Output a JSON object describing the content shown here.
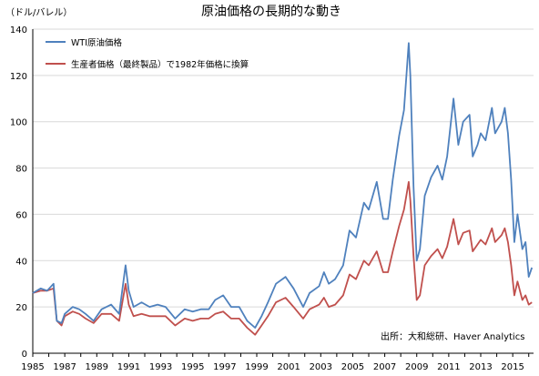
{
  "chart_data": {
    "type": "line",
    "title": "原油価格の長期的な動き",
    "ylabel": "（ドル/バレル）",
    "source": "出所：大和総研、Haver Analytics",
    "ylim": [
      0,
      140
    ],
    "yticks": [
      0,
      20,
      40,
      60,
      80,
      100,
      120,
      140
    ],
    "xlim": [
      1985,
      2016.3
    ],
    "xticks": [
      1985,
      1987,
      1989,
      1991,
      1993,
      1995,
      1997,
      1999,
      2001,
      2003,
      2005,
      2007,
      2009,
      2011,
      2013,
      2015
    ],
    "xtick_labels": [
      "1985",
      "1987",
      "1989",
      "1991",
      "1993",
      "1995",
      "1997",
      "1999",
      "2001",
      "2003",
      "2005",
      "2007",
      "2009",
      "2011",
      "2013",
      "2015"
    ],
    "grid": "horizontal",
    "legend": "top-left",
    "series": [
      {
        "name": "WTI原油価格",
        "color": "#4f81bd",
        "points": [
          [
            1985.0,
            26
          ],
          [
            1985.5,
            28
          ],
          [
            1985.9,
            27
          ],
          [
            1986.3,
            30
          ],
          [
            1986.5,
            14
          ],
          [
            1986.8,
            13
          ],
          [
            1987.0,
            17
          ],
          [
            1987.5,
            20
          ],
          [
            1987.9,
            19
          ],
          [
            1988.3,
            17
          ],
          [
            1988.8,
            14
          ],
          [
            1989.3,
            19
          ],
          [
            1989.9,
            21
          ],
          [
            1990.4,
            17
          ],
          [
            1990.8,
            38
          ],
          [
            1991.0,
            27
          ],
          [
            1991.3,
            20
          ],
          [
            1991.8,
            22
          ],
          [
            1992.3,
            20
          ],
          [
            1992.8,
            21
          ],
          [
            1993.3,
            20
          ],
          [
            1993.9,
            15
          ],
          [
            1994.5,
            19
          ],
          [
            1995.0,
            18
          ],
          [
            1995.5,
            19
          ],
          [
            1996.0,
            19
          ],
          [
            1996.4,
            23
          ],
          [
            1996.9,
            25
          ],
          [
            1997.4,
            20
          ],
          [
            1997.9,
            20
          ],
          [
            1998.4,
            14
          ],
          [
            1998.9,
            11
          ],
          [
            1999.3,
            16
          ],
          [
            1999.7,
            22
          ],
          [
            2000.2,
            30
          ],
          [
            2000.8,
            33
          ],
          [
            2001.3,
            28
          ],
          [
            2001.9,
            20
          ],
          [
            2002.3,
            26
          ],
          [
            2002.9,
            29
          ],
          [
            2003.2,
            35
          ],
          [
            2003.5,
            30
          ],
          [
            2003.9,
            32
          ],
          [
            2004.4,
            38
          ],
          [
            2004.8,
            53
          ],
          [
            2005.2,
            50
          ],
          [
            2005.7,
            65
          ],
          [
            2006.0,
            62
          ],
          [
            2006.5,
            74
          ],
          [
            2006.9,
            58
          ],
          [
            2007.2,
            58
          ],
          [
            2007.5,
            75
          ],
          [
            2007.9,
            94
          ],
          [
            2008.2,
            105
          ],
          [
            2008.5,
            134
          ],
          [
            2008.6,
            120
          ],
          [
            2008.8,
            72
          ],
          [
            2009.0,
            40
          ],
          [
            2009.2,
            45
          ],
          [
            2009.5,
            68
          ],
          [
            2009.9,
            76
          ],
          [
            2010.3,
            81
          ],
          [
            2010.6,
            75
          ],
          [
            2010.9,
            85
          ],
          [
            2011.3,
            110
          ],
          [
            2011.6,
            90
          ],
          [
            2011.9,
            100
          ],
          [
            2012.3,
            103
          ],
          [
            2012.5,
            85
          ],
          [
            2012.8,
            90
          ],
          [
            2013.0,
            95
          ],
          [
            2013.3,
            92
          ],
          [
            2013.7,
            106
          ],
          [
            2013.9,
            95
          ],
          [
            2014.3,
            100
          ],
          [
            2014.5,
            106
          ],
          [
            2014.7,
            95
          ],
          [
            2014.9,
            75
          ],
          [
            2015.1,
            48
          ],
          [
            2015.3,
            60
          ],
          [
            2015.6,
            45
          ],
          [
            2015.8,
            48
          ],
          [
            2016.0,
            33
          ],
          [
            2016.2,
            37
          ]
        ]
      },
      {
        "name": "生産者価格（最終製品）で1982年価格に換算",
        "color": "#c0504d",
        "points": [
          [
            1985.0,
            26
          ],
          [
            1985.5,
            27
          ],
          [
            1985.9,
            27
          ],
          [
            1986.3,
            28
          ],
          [
            1986.5,
            14
          ],
          [
            1986.8,
            12
          ],
          [
            1987.0,
            16
          ],
          [
            1987.5,
            18
          ],
          [
            1987.9,
            17
          ],
          [
            1988.3,
            15
          ],
          [
            1988.8,
            13
          ],
          [
            1989.3,
            17
          ],
          [
            1989.9,
            17
          ],
          [
            1990.4,
            14
          ],
          [
            1990.8,
            30
          ],
          [
            1991.0,
            21
          ],
          [
            1991.3,
            16
          ],
          [
            1991.8,
            17
          ],
          [
            1992.3,
            16
          ],
          [
            1992.8,
            16
          ],
          [
            1993.3,
            16
          ],
          [
            1993.9,
            12
          ],
          [
            1994.5,
            15
          ],
          [
            1995.0,
            14
          ],
          [
            1995.5,
            15
          ],
          [
            1996.0,
            15
          ],
          [
            1996.4,
            17
          ],
          [
            1996.9,
            18
          ],
          [
            1997.4,
            15
          ],
          [
            1997.9,
            15
          ],
          [
            1998.4,
            11
          ],
          [
            1998.9,
            8
          ],
          [
            1999.3,
            12
          ],
          [
            1999.7,
            16
          ],
          [
            2000.2,
            22
          ],
          [
            2000.8,
            24
          ],
          [
            2001.3,
            20
          ],
          [
            2001.9,
            15
          ],
          [
            2002.3,
            19
          ],
          [
            2002.9,
            21
          ],
          [
            2003.2,
            24
          ],
          [
            2003.5,
            20
          ],
          [
            2003.9,
            21
          ],
          [
            2004.4,
            25
          ],
          [
            2004.8,
            34
          ],
          [
            2005.2,
            32
          ],
          [
            2005.7,
            40
          ],
          [
            2006.0,
            38
          ],
          [
            2006.5,
            44
          ],
          [
            2006.9,
            35
          ],
          [
            2007.2,
            35
          ],
          [
            2007.5,
            44
          ],
          [
            2007.9,
            55
          ],
          [
            2008.2,
            62
          ],
          [
            2008.5,
            74
          ],
          [
            2008.6,
            66
          ],
          [
            2008.8,
            42
          ],
          [
            2009.0,
            23
          ],
          [
            2009.2,
            25
          ],
          [
            2009.5,
            38
          ],
          [
            2009.9,
            42
          ],
          [
            2010.3,
            45
          ],
          [
            2010.6,
            41
          ],
          [
            2010.9,
            46
          ],
          [
            2011.3,
            58
          ],
          [
            2011.6,
            47
          ],
          [
            2011.9,
            52
          ],
          [
            2012.3,
            53
          ],
          [
            2012.5,
            44
          ],
          [
            2012.8,
            47
          ],
          [
            2013.0,
            49
          ],
          [
            2013.3,
            47
          ],
          [
            2013.7,
            54
          ],
          [
            2013.9,
            48
          ],
          [
            2014.3,
            51
          ],
          [
            2014.5,
            54
          ],
          [
            2014.7,
            48
          ],
          [
            2014.9,
            38
          ],
          [
            2015.1,
            25
          ],
          [
            2015.3,
            31
          ],
          [
            2015.6,
            23
          ],
          [
            2015.8,
            25
          ],
          [
            2016.0,
            21
          ],
          [
            2016.2,
            22
          ]
        ]
      }
    ]
  }
}
